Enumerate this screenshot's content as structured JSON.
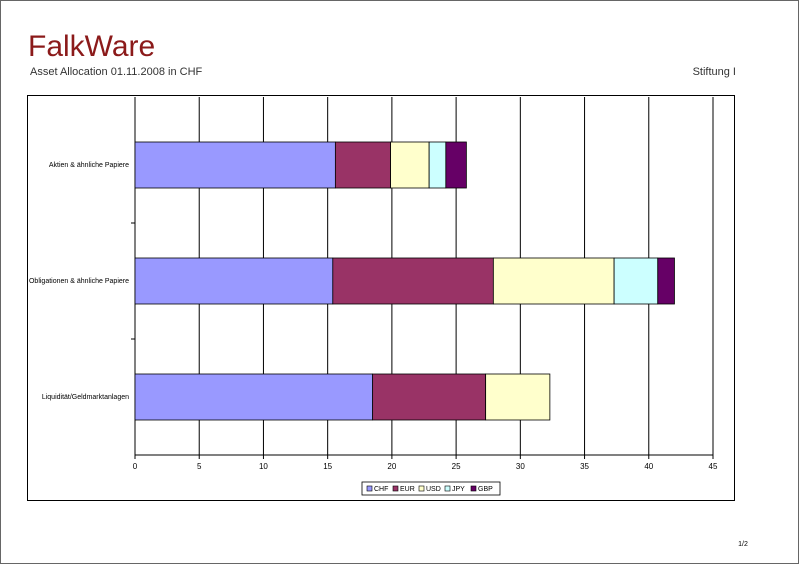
{
  "header": {
    "brand": "FalkWare",
    "subtitle": "Asset Allocation 01.11.2008 in CHF",
    "entity": "Stiftung I"
  },
  "page_number": "1/2",
  "chart_data": {
    "type": "stacked-bar-horizontal",
    "categories": [
      "Aktien & ähnliche Papiere",
      "Obligationen & ähnliche Papiere",
      "Liquidität/Geldmarktanlagen"
    ],
    "series": [
      {
        "name": "CHF",
        "color": "#9999ff",
        "values": [
          15.6,
          15.4,
          18.5
        ]
      },
      {
        "name": "EUR",
        "color": "#993366",
        "values": [
          4.3,
          12.5,
          8.8
        ]
      },
      {
        "name": "USD",
        "color": "#ffffcc",
        "values": [
          3.0,
          9.4,
          5.0
        ]
      },
      {
        "name": "JPY",
        "color": "#ccffff",
        "values": [
          1.3,
          3.4,
          0
        ]
      },
      {
        "name": "GBP",
        "color": "#660066",
        "values": [
          1.6,
          1.3,
          0
        ]
      }
    ],
    "xlim": [
      0,
      45
    ],
    "xticks": [
      0,
      5,
      10,
      15,
      20,
      25,
      30,
      35,
      40,
      45
    ],
    "grid": true,
    "legend": "bottom"
  }
}
